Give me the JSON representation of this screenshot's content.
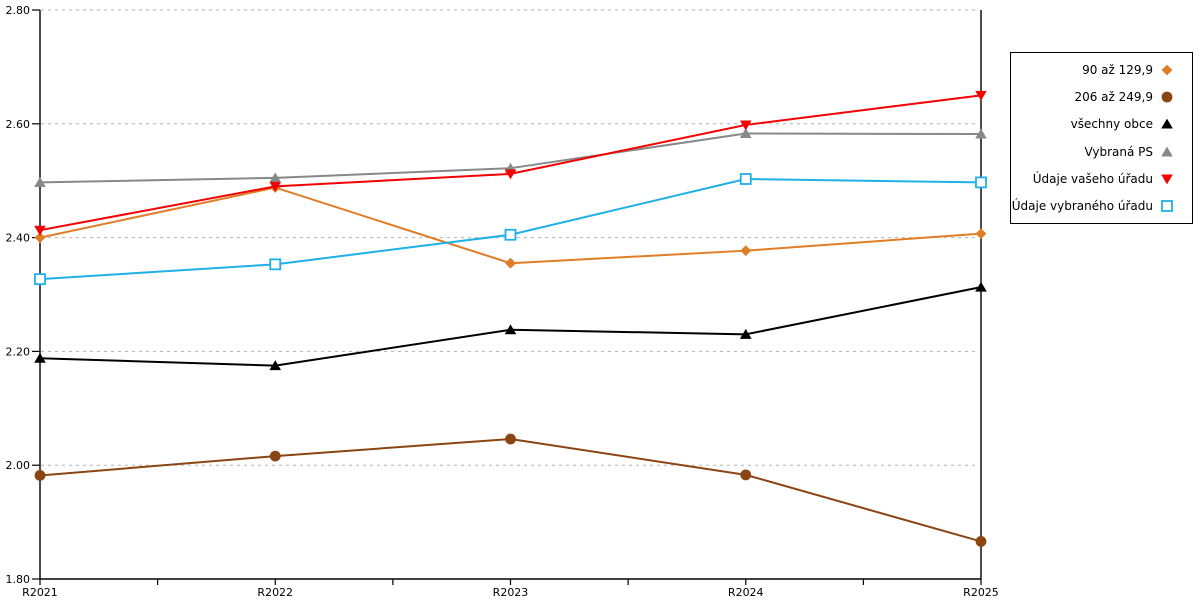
{
  "page": {
    "background": "#FFFFFF"
  },
  "chart_data": {
    "type": "line",
    "title": "",
    "xlabel": "",
    "ylabel": "",
    "categories": [
      "R2021",
      "R2022",
      "R2023",
      "R2024",
      "R2025"
    ],
    "series": [
      {
        "name": "90 až 129,9",
        "marker": "diamond",
        "color": "#E07D26",
        "values": [
          2.4,
          2.488,
          2.355,
          2.377,
          2.407
        ]
      },
      {
        "name": "206 až 249,9",
        "marker": "circle",
        "color": "#8B4513",
        "values": [
          1.982,
          2.016,
          2.046,
          1.983,
          1.866
        ]
      },
      {
        "name": "všechny obce",
        "marker": "triangle-up",
        "color": "#000000",
        "values": [
          2.188,
          2.175,
          2.238,
          2.23,
          2.313
        ]
      },
      {
        "name": "Vybraná PS",
        "marker": "triangle-up",
        "color": "#888888",
        "values": [
          2.497,
          2.505,
          2.522,
          2.583,
          2.582
        ]
      },
      {
        "name": "Údaje vašeho úřadu",
        "marker": "triangle-down",
        "color": "#F40000",
        "values": [
          2.413,
          2.49,
          2.512,
          2.598,
          2.65
        ]
      },
      {
        "name": "Údaje vybraného úřadu",
        "marker": "square-open",
        "color": "#1FB0E8",
        "values": [
          2.327,
          2.353,
          2.405,
          2.503,
          2.497
        ]
      }
    ],
    "ylim": [
      1.8,
      2.8
    ],
    "ytick_labels": [
      "1.80",
      "2.00",
      "2.20",
      "2.40",
      "2.60",
      "2.80"
    ],
    "grid": "horizontal-dashed",
    "legend_position": "right",
    "colors": {
      "axis": "#000000",
      "grid": "#B3B3B3",
      "legend_border": "#000000",
      "background": "#FFFFFF"
    }
  }
}
